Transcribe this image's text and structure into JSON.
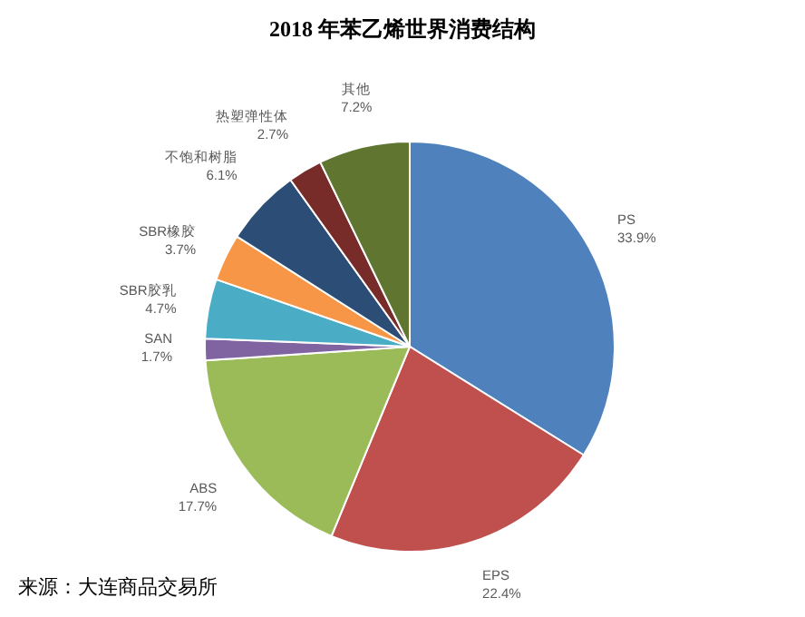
{
  "chart_data": {
    "type": "pie",
    "title": "2018 年苯乙烯世界消费结构",
    "categories": [
      "PS",
      "EPS",
      "ABS",
      "SAN",
      "SBR胶乳",
      "SBR橡胶",
      "不饱和树脂",
      "热塑弹性体",
      "其他"
    ],
    "values": [
      33.9,
      22.4,
      17.7,
      1.7,
      4.7,
      3.7,
      6.1,
      2.7,
      7.2
    ],
    "value_labels": [
      "33.9%",
      "22.4%",
      "17.7%",
      "1.7%",
      "4.7%",
      "3.7%",
      "6.1%",
      "2.7%",
      "7.2%"
    ],
    "colors": [
      "#4f81bd",
      "#c0504d",
      "#9bbb59",
      "#8064a2",
      "#4bacc6",
      "#f79646",
      "#2c4d75",
      "#772c2a",
      "#5f7530"
    ],
    "annotations": [
      "来源：大连商品交易所"
    ]
  }
}
